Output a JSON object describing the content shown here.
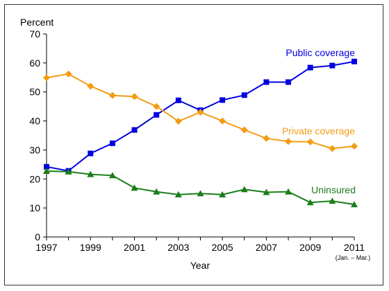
{
  "chart_data": {
    "type": "line",
    "ylabel": "Percent",
    "xlabel": "Year",
    "ylim": [
      0,
      70
    ],
    "y_ticks": [
      "0",
      "10",
      "20",
      "30",
      "40",
      "50",
      "60",
      "70"
    ],
    "x_ticks": [
      "1997",
      "1999",
      "2001",
      "2003",
      "2005",
      "2007",
      "2009",
      "2011"
    ],
    "x_tick_sublabel": "(Jan. – Mar.)",
    "x": [
      1997,
      1998,
      1999,
      2000,
      2001,
      2002,
      2003,
      2004,
      2005,
      2006,
      2007,
      2008,
      2009,
      2010,
      2011
    ],
    "series": [
      {
        "name": "Public coverage",
        "color": "#0000e0",
        "marker": "square",
        "values": [
          24.2,
          22.8,
          28.8,
          32.3,
          36.9,
          42.1,
          47.1,
          43.7,
          47.2,
          48.9,
          53.4,
          53.4,
          58.4,
          59.1,
          60.5
        ]
      },
      {
        "name": "Private coverage",
        "color": "#f39c12",
        "marker": "diamond",
        "values": [
          54.9,
          56.2,
          52.0,
          48.8,
          48.4,
          45.0,
          39.9,
          43.0,
          40.0,
          36.9,
          34.0,
          32.9,
          32.8,
          30.5,
          31.3
        ]
      },
      {
        "name": "Uninsured",
        "color": "#1a7d1a",
        "marker": "triangle",
        "values": [
          22.7,
          22.5,
          21.6,
          21.2,
          16.9,
          15.6,
          14.6,
          15.0,
          14.6,
          16.4,
          15.4,
          15.6,
          11.9,
          12.4,
          11.2
        ]
      }
    ]
  }
}
